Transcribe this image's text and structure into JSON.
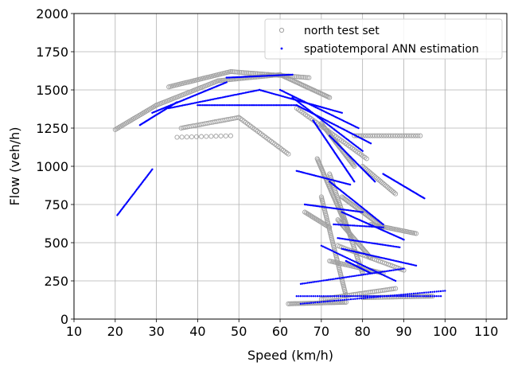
{
  "chart_data": {
    "type": "scatter",
    "xlabel": "Speed (km/h)",
    "ylabel": "Flow (veh/h)",
    "xlim": [
      10,
      115
    ],
    "ylim": [
      0,
      2000
    ],
    "xticks": [
      10,
      20,
      30,
      40,
      50,
      60,
      70,
      80,
      90,
      100,
      110
    ],
    "yticks": [
      0,
      250,
      500,
      750,
      1000,
      1250,
      1500,
      1750,
      2000
    ],
    "grid": true,
    "legend_position": "top-right",
    "series": [
      {
        "name": "north test set",
        "marker": "hollow-circle",
        "color": "#a0a0a0",
        "segments": [
          {
            "from": [
              20,
              1240
            ],
            "to": [
              30,
              1400
            ],
            "n": 30
          },
          {
            "from": [
              30,
              1400
            ],
            "to": [
              45,
              1560
            ],
            "n": 40
          },
          {
            "from": [
              33,
              1520
            ],
            "to": [
              48,
              1620
            ],
            "n": 40
          },
          {
            "from": [
              45,
              1560
            ],
            "to": [
              60,
              1600
            ],
            "n": 40
          },
          {
            "from": [
              48,
              1620
            ],
            "to": [
              67,
              1580
            ],
            "n": 45
          },
          {
            "from": [
              60,
              1600
            ],
            "to": [
              72,
              1450
            ],
            "n": 40
          },
          {
            "from": [
              36,
              1250
            ],
            "to": [
              50,
              1320
            ],
            "n": 30
          },
          {
            "from": [
              35,
              1190
            ],
            "to": [
              48,
              1200
            ],
            "n": 12
          },
          {
            "from": [
              50,
              1320
            ],
            "to": [
              62,
              1080
            ],
            "n": 30
          },
          {
            "from": [
              64,
              1380
            ],
            "to": [
              81,
              1050
            ],
            "n": 40
          },
          {
            "from": [
              78,
              1200
            ],
            "to": [
              94,
              1200
            ],
            "n": 30
          },
          {
            "from": [
              80,
              1000
            ],
            "to": [
              88,
              820
            ],
            "n": 25
          },
          {
            "from": [
              70,
              1280
            ],
            "to": [
              78,
              1000
            ],
            "n": 40
          },
          {
            "from": [
              69,
              1050
            ],
            "to": [
              77,
              550
            ],
            "n": 60
          },
          {
            "from": [
              72,
              950
            ],
            "to": [
              80,
              300
            ],
            "n": 60
          },
          {
            "from": [
              70,
              800
            ],
            "to": [
              76,
              150
            ],
            "n": 60
          },
          {
            "from": [
              74,
              650
            ],
            "to": [
              82,
              400
            ],
            "n": 40
          },
          {
            "from": [
              75,
              800
            ],
            "to": [
              85,
              600
            ],
            "n": 40
          },
          {
            "from": [
              82,
              620
            ],
            "to": [
              93,
              560
            ],
            "n": 30
          },
          {
            "from": [
              66,
              700
            ],
            "to": [
              72,
              600
            ],
            "n": 20
          },
          {
            "from": [
              62,
              100
            ],
            "to": [
              76,
              110
            ],
            "n": 40
          },
          {
            "from": [
              70,
              130
            ],
            "to": [
              88,
              200
            ],
            "n": 40
          },
          {
            "from": [
              80,
              140
            ],
            "to": [
              97,
              150
            ],
            "n": 40
          },
          {
            "from": [
              72,
              380
            ],
            "to": [
              85,
              300
            ],
            "n": 35
          },
          {
            "from": [
              74,
              480
            ],
            "to": [
              90,
              320
            ],
            "n": 35
          }
        ]
      },
      {
        "name": "spatiotemporal ANN estimation",
        "marker": "dot",
        "color": "#0000ff",
        "segments": [
          {
            "from": [
              20.5,
              680
            ],
            "to": [
              29,
              980
            ],
            "n": 40
          },
          {
            "from": [
              26,
              1270
            ],
            "to": [
              35,
              1420
            ],
            "n": 40
          },
          {
            "from": [
              29,
              1350
            ],
            "to": [
              47,
              1550
            ],
            "n": 60
          },
          {
            "from": [
              33,
              1380
            ],
            "to": [
              55,
              1500
            ],
            "n": 60
          },
          {
            "from": [
              40,
              1400
            ],
            "to": [
              64,
              1400
            ],
            "n": 60
          },
          {
            "from": [
              47,
              1580
            ],
            "to": [
              63,
              1600
            ],
            "n": 50
          },
          {
            "from": [
              55,
              1500
            ],
            "to": [
              75,
              1350
            ],
            "n": 60
          },
          {
            "from": [
              60,
              1500
            ],
            "to": [
              79,
              1250
            ],
            "n": 60
          },
          {
            "from": [
              63,
              1450
            ],
            "to": [
              80,
              1100
            ],
            "n": 60
          },
          {
            "from": [
              64,
              1400
            ],
            "to": [
              82,
              1150
            ],
            "n": 60
          },
          {
            "from": [
              68,
              1300
            ],
            "to": [
              78,
              900
            ],
            "n": 60
          },
          {
            "from": [
              72,
              1200
            ],
            "to": [
              83,
              900
            ],
            "n": 50
          },
          {
            "from": [
              64,
              970
            ],
            "to": [
              77,
              880
            ],
            "n": 40
          },
          {
            "from": [
              85,
              950
            ],
            "to": [
              95,
              790
            ],
            "n": 40
          },
          {
            "from": [
              66,
              750
            ],
            "to": [
              80,
              700
            ],
            "n": 40
          },
          {
            "from": [
              72,
              900
            ],
            "to": [
              85,
              620
            ],
            "n": 50
          },
          {
            "from": [
              75,
              700
            ],
            "to": [
              90,
              520
            ],
            "n": 50
          },
          {
            "from": [
              74,
              530
            ],
            "to": [
              89,
              470
            ],
            "n": 40
          },
          {
            "from": [
              75,
              460
            ],
            "to": [
              93,
              350
            ],
            "n": 50
          },
          {
            "from": [
              70,
              480
            ],
            "to": [
              88,
              250
            ],
            "n": 50
          },
          {
            "from": [
              65,
              230
            ],
            "to": [
              90,
              330
            ],
            "n": 60
          },
          {
            "from": [
              64,
              150
            ],
            "to": [
              99,
              150
            ],
            "n": 70
          },
          {
            "from": [
              65,
              100
            ],
            "to": [
              100,
              185
            ],
            "n": 70
          },
          {
            "from": [
              73,
              620
            ],
            "to": [
              85,
              600
            ],
            "n": 30
          },
          {
            "from": [
              76,
              380
            ],
            "to": [
              82,
              300
            ],
            "n": 25
          }
        ]
      }
    ]
  }
}
